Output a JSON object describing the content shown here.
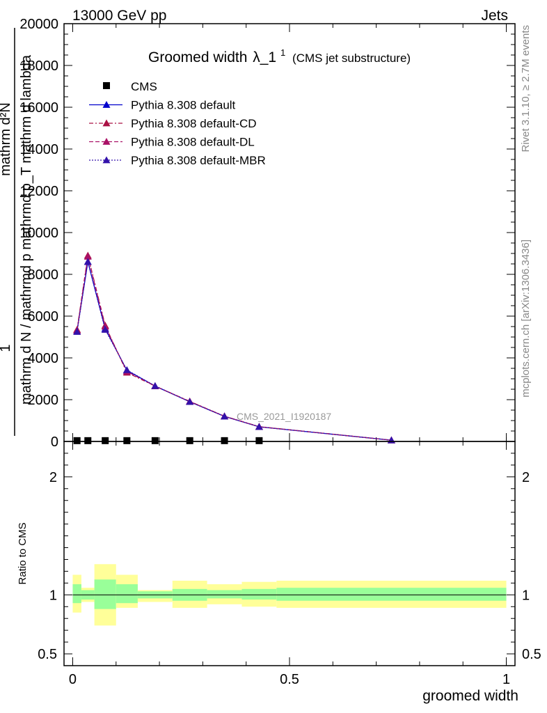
{
  "header": {
    "energy_label": "13000 GeV pp",
    "category_label": "Jets",
    "side_label_top": "Rivet 3.1.10, ≥ 2.7M events",
    "side_label_bottom": "mcplots.cern.ch [arXiv:1306.3436]",
    "watermark": "CMS_2021_I1920187"
  },
  "chart_data": [
    {
      "type": "line",
      "title": "Groomed width",
      "title_symbol": "λ_1",
      "title_superscript": "1",
      "subtitle": "(CMS jet substructure)",
      "ylabel_numerator": "1",
      "ylabel_denominator": "mathrm d N / mathrmd p mathrmd p_T mathrm d lambda",
      "ylabel_top": "mathrm d²N",
      "ylim": [
        0,
        20000
      ],
      "y_ticks": [
        "0",
        "2000",
        "4000",
        "6000",
        "8000",
        "10000",
        "12000",
        "14000",
        "16000",
        "18000",
        "20000"
      ],
      "xlim": [
        -0.02,
        1.02
      ],
      "grid": false,
      "legend_position": "top-left",
      "series": [
        {
          "name": "CMS",
          "style": "markers",
          "marker": "square",
          "color": "#000000",
          "x": [
            0.01,
            0.035,
            0.075,
            0.125,
            0.19,
            0.27,
            0.35,
            0.43
          ],
          "values": [
            5,
            5,
            5,
            5,
            5,
            5,
            5,
            5
          ]
        },
        {
          "name": "Pythia 8.308 default",
          "style": "solid",
          "marker": "triangle",
          "color": "#0000cc",
          "x": [
            0.01,
            0.035,
            0.075,
            0.125,
            0.19,
            0.27,
            0.35,
            0.43,
            0.735
          ],
          "values": [
            5300,
            8600,
            5400,
            3400,
            2650,
            1900,
            1200,
            700,
            60
          ]
        },
        {
          "name": "Pythia 8.308 default-CD",
          "style": "dashdot",
          "marker": "triangle",
          "color": "#aa1144",
          "x": [
            0.01,
            0.035,
            0.075,
            0.125,
            0.19,
            0.27,
            0.35,
            0.43,
            0.735
          ],
          "values": [
            5350,
            8900,
            5550,
            3300,
            2650,
            1920,
            1210,
            710,
            60
          ]
        },
        {
          "name": "Pythia 8.308 default-DL",
          "style": "dashed",
          "marker": "triangle",
          "color": "#aa1166",
          "x": [
            0.01,
            0.035,
            0.075,
            0.125,
            0.19,
            0.27,
            0.35,
            0.43,
            0.735
          ],
          "values": [
            5300,
            8850,
            5500,
            3350,
            2650,
            1910,
            1205,
            705,
            60
          ]
        },
        {
          "name": "Pythia 8.308 default-MBR",
          "style": "dotted",
          "marker": "triangle",
          "color": "#3311aa",
          "x": [
            0.01,
            0.035,
            0.075,
            0.125,
            0.19,
            0.27,
            0.35,
            0.43,
            0.735
          ],
          "values": [
            5250,
            8600,
            5350,
            3420,
            2660,
            1900,
            1200,
            700,
            60
          ]
        }
      ]
    },
    {
      "type": "area",
      "ylabel": "Ratio to CMS",
      "xlabel": "groomed width",
      "ylim": [
        0.4,
        2.3
      ],
      "xlim": [
        -0.02,
        1.02
      ],
      "y_ticks": [
        {
          "v": 0.5,
          "label": "0.5"
        },
        {
          "v": 1,
          "label": "1"
        },
        {
          "v": 2,
          "label": "2"
        }
      ],
      "x_ticks": [
        {
          "v": 0,
          "label": "0"
        },
        {
          "v": 0.5,
          "label": "0.5"
        },
        {
          "v": 1,
          "label": "1"
        }
      ],
      "reference": 1,
      "bands": [
        {
          "x0": 0.0,
          "x1": 0.02,
          "inner": [
            0.93,
            1.09
          ],
          "outer": [
            0.85,
            1.17
          ]
        },
        {
          "x0": 0.02,
          "x1": 0.05,
          "inner": [
            0.96,
            1.04
          ],
          "outer": [
            0.94,
            1.06
          ]
        },
        {
          "x0": 0.05,
          "x1": 0.1,
          "inner": [
            0.88,
            1.13
          ],
          "outer": [
            0.74,
            1.26
          ]
        },
        {
          "x0": 0.1,
          "x1": 0.15,
          "inner": [
            0.93,
            1.09
          ],
          "outer": [
            0.89,
            1.17
          ]
        },
        {
          "x0": 0.15,
          "x1": 0.23,
          "inner": [
            0.97,
            1.03
          ],
          "outer": [
            0.94,
            1.04
          ]
        },
        {
          "x0": 0.23,
          "x1": 0.31,
          "inner": [
            0.95,
            1.05
          ],
          "outer": [
            0.89,
            1.12
          ]
        },
        {
          "x0": 0.31,
          "x1": 0.39,
          "inner": [
            0.97,
            1.04
          ],
          "outer": [
            0.92,
            1.09
          ]
        },
        {
          "x0": 0.39,
          "x1": 0.47,
          "inner": [
            0.96,
            1.05
          ],
          "outer": [
            0.9,
            1.11
          ]
        },
        {
          "x0": 0.47,
          "x1": 1.0,
          "inner": [
            0.95,
            1.06
          ],
          "outer": [
            0.89,
            1.12
          ]
        }
      ],
      "colors": {
        "inner": "#99ff99",
        "outer": "#ffff99"
      }
    }
  ]
}
